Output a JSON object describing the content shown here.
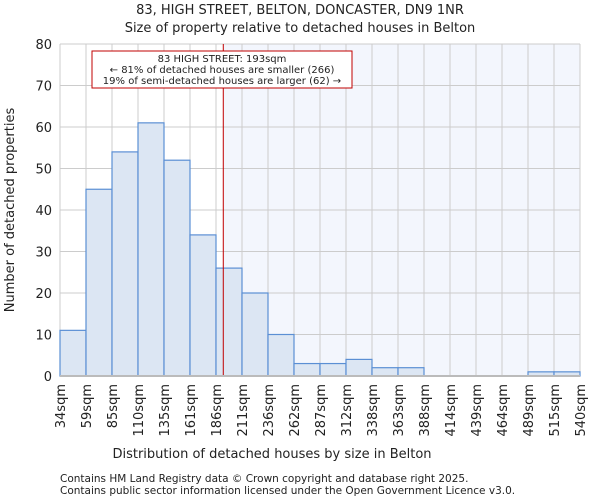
{
  "chart_data": {
    "type": "bar",
    "title": "83, HIGH STREET, BELTON, DONCASTER, DN9 1NR",
    "subtitle": "Size of property relative to detached houses in Belton",
    "xlabel": "Distribution of detached houses by size in Belton",
    "ylabel": "Number of detached properties",
    "ylim": [
      0,
      80
    ],
    "yticks": [
      0,
      10,
      20,
      30,
      40,
      50,
      60,
      70,
      80
    ],
    "bin_edges": [
      34,
      59,
      85,
      110,
      135,
      161,
      186,
      211,
      236,
      262,
      287,
      312,
      338,
      363,
      388,
      414,
      439,
      464,
      489,
      515,
      540
    ],
    "tick_labels": [
      "34sqm",
      "59sqm",
      "85sqm",
      "110sqm",
      "135sqm",
      "161sqm",
      "186sqm",
      "211sqm",
      "236sqm",
      "262sqm",
      "287sqm",
      "312sqm",
      "338sqm",
      "363sqm",
      "388sqm",
      "414sqm",
      "439sqm",
      "464sqm",
      "489sqm",
      "515sqm",
      "540sqm"
    ],
    "values": [
      11,
      45,
      54,
      61,
      52,
      34,
      26,
      20,
      10,
      3,
      3,
      4,
      2,
      2,
      0,
      0,
      0,
      0,
      1,
      1
    ],
    "marker_value": 193,
    "annotation": [
      "83 HIGH STREET: 193sqm",
      "← 81% of detached houses are smaller (266)",
      "19% of semi-detached houses are larger (62) →"
    ],
    "grid": true,
    "colors": {
      "bar_fill": "#dce6f3",
      "bar_edge": "#5b8fd4",
      "marker": "#c00000",
      "highlight": "#f3f6fd",
      "grid": "#cccccc"
    }
  },
  "footer": [
    "Contains HM Land Registry data © Crown copyright and database right 2025.",
    "Contains public sector information licensed under the Open Government Licence v3.0."
  ]
}
